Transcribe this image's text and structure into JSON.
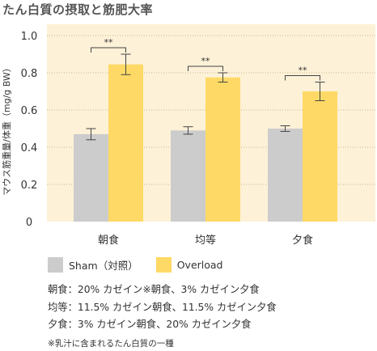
{
  "title": "たん白質の摂取と筋肥大率",
  "chart_data": {
    "type": "bar",
    "ylabel": "マウス筋重量/体重（mg/g BW）",
    "ylim": [
      0,
      1.0
    ],
    "yticks": [
      "0",
      "0.2",
      "0.4",
      "0.6",
      "0.8",
      "1.0"
    ],
    "categories": [
      "朝食",
      "均等",
      "夕食"
    ],
    "series": [
      {
        "name": "Sham（対照）",
        "color": "#cccccc",
        "values": [
          0.47,
          0.49,
          0.5
        ],
        "errors": [
          0.03,
          0.02,
          0.015
        ]
      },
      {
        "name": "Overload",
        "color": "#ffd966",
        "values": [
          0.845,
          0.775,
          0.7
        ],
        "errors": [
          0.055,
          0.025,
          0.05
        ]
      }
    ],
    "annotations": [
      "**",
      "**",
      "**"
    ],
    "background": "#fdf1d7",
    "grid": "dotted"
  },
  "notes": [
    "朝食：20% カゼイン※朝食、3% カゼイン夕食",
    "均等：11.5% カゼイン朝食、11.5% カゼイン夕食",
    "夕食：3% カゼイン朝食、20% カゼイン夕食"
  ],
  "footnote": "※乳汁に含まれるたん白質の一種"
}
